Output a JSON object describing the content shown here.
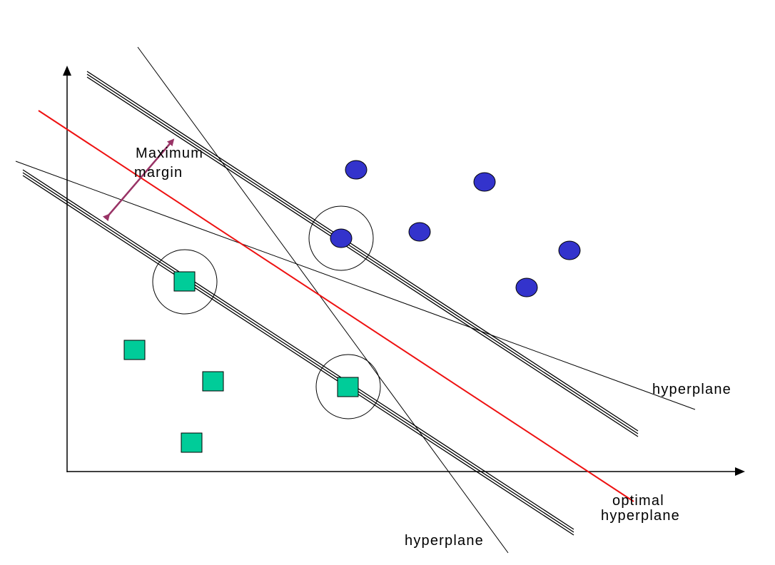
{
  "labels": {
    "maximum_margin_line1": "Maximum",
    "maximum_margin_line2": "margin",
    "hyperplane_right": "hyperplane",
    "optimal_line1": "optimal",
    "optimal_line2": "hyperplane",
    "hyperplane_bottom": "hyperplane"
  },
  "classes": {
    "circles": {
      "shape": "circle",
      "count": 6
    },
    "squares": {
      "shape": "square",
      "count": 5
    }
  },
  "support_vectors_circled": 3,
  "colors": {
    "circle_fill": "#3333cc",
    "square_fill": "#00cc99",
    "optimal_hyperplane": "#ee1111",
    "margin_arrow": "#993366",
    "lines": "#000000",
    "background": "#ffffff"
  },
  "icons": {
    "margin_arrow": "double-headed-arrow-icon",
    "x_axis_arrow": "arrowhead-right-icon",
    "y_axis_arrow": "arrowhead-up-icon"
  }
}
